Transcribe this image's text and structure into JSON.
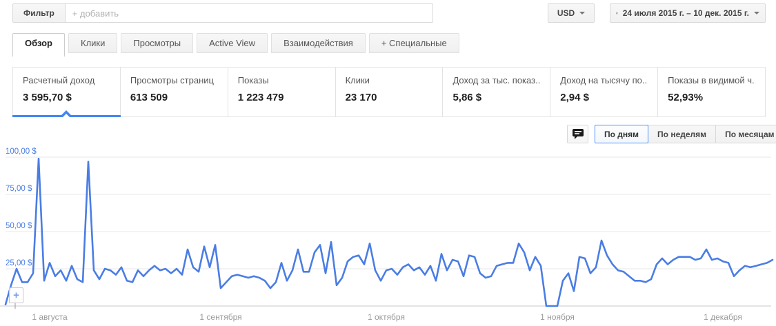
{
  "filter_bar": {
    "label": "Фильтр",
    "placeholder": "+ добавить"
  },
  "toolbar": {
    "currency": "USD",
    "date_range": "24 июля 2015 г. – 10 дек. 2015 г."
  },
  "icons": {
    "zoom_plus": "+"
  },
  "tabs": [
    {
      "label": "Обзор",
      "active": true
    },
    {
      "label": "Клики",
      "active": false
    },
    {
      "label": "Просмотры",
      "active": false
    },
    {
      "label": "Active View",
      "active": false
    },
    {
      "label": "Взаимодействия",
      "active": false
    },
    {
      "label": "+ Специальные",
      "active": false
    }
  ],
  "metrics": [
    {
      "label": "Расчетный доход",
      "value": "3 595,70 $",
      "active": true
    },
    {
      "label": "Просмотры страниц",
      "value": "613 509",
      "active": false
    },
    {
      "label": "Показы",
      "value": "1 223 479",
      "active": false
    },
    {
      "label": "Клики",
      "value": "23 170",
      "active": false
    },
    {
      "label": "Доход за тыс. показ...",
      "value": "5,86 $",
      "active": false
    },
    {
      "label": "Доход на тысячу по...",
      "value": "2,94 $",
      "active": false
    },
    {
      "label": "Показы в видимой ч...",
      "value": "52,93%",
      "active": false
    }
  ],
  "chart_controls": {
    "options": [
      "По дням",
      "По неделям",
      "По месяцам"
    ],
    "selected": "По дням"
  },
  "chart_data": {
    "type": "line",
    "series_name": "Расчетный доход",
    "unit": "$ в день",
    "date_start": "24 июля 2015 г.",
    "date_end": "10 дек. 2015 г.",
    "line_color": "#4a7de4",
    "axis_label_color": "#4a7de4",
    "x_label_color": "#9a9a9a",
    "grid_color": "#e7e7e7",
    "baseline_color": "#c9c9c9",
    "ylim": [
      0,
      107
    ],
    "grid": true,
    "legend": false,
    "y_ticks": [
      {
        "label": "100,00 $",
        "value": 100
      },
      {
        "label": "75,00 $",
        "value": 75
      },
      {
        "label": "50,00 $",
        "value": 50
      },
      {
        "label": "25,00 $",
        "value": 25
      }
    ],
    "x_ticks": [
      {
        "label": "1 августа",
        "day": 8
      },
      {
        "label": "1 сентября",
        "day": 39
      },
      {
        "label": "1 октября",
        "day": 69
      },
      {
        "label": "1 ноября",
        "day": 100
      },
      {
        "label": "1 декабря",
        "day": 130
      }
    ],
    "values": [
      1,
      14,
      25,
      16,
      16,
      22,
      99,
      17,
      29,
      20,
      24,
      17,
      27,
      18,
      16,
      97,
      24,
      18,
      25,
      24,
      21,
      26,
      17,
      16,
      24,
      20,
      24,
      27,
      24,
      25,
      22,
      25,
      21,
      38,
      26,
      23,
      40,
      26,
      41,
      12,
      16,
      20,
      21,
      20,
      19,
      20,
      19,
      17,
      12,
      16,
      29,
      17,
      24,
      38,
      23,
      23,
      36,
      41,
      22,
      43,
      14,
      19,
      30,
      33,
      34,
      28,
      42,
      24,
      17,
      24,
      25,
      21,
      26,
      28,
      24,
      26,
      21,
      27,
      17,
      35,
      24,
      31,
      30,
      20,
      34,
      33,
      22,
      19,
      20,
      27,
      28,
      29,
      29,
      42,
      36,
      24,
      33,
      27,
      0,
      0,
      0,
      17,
      22,
      10,
      33,
      32,
      22,
      26,
      44,
      34,
      28,
      24,
      23,
      20,
      17,
      17,
      16,
      18,
      28,
      32,
      28,
      31,
      33,
      33,
      33,
      31,
      32,
      38,
      31,
      32,
      30,
      29,
      20,
      24,
      27,
      26,
      27,
      28,
      29,
      31
    ]
  }
}
